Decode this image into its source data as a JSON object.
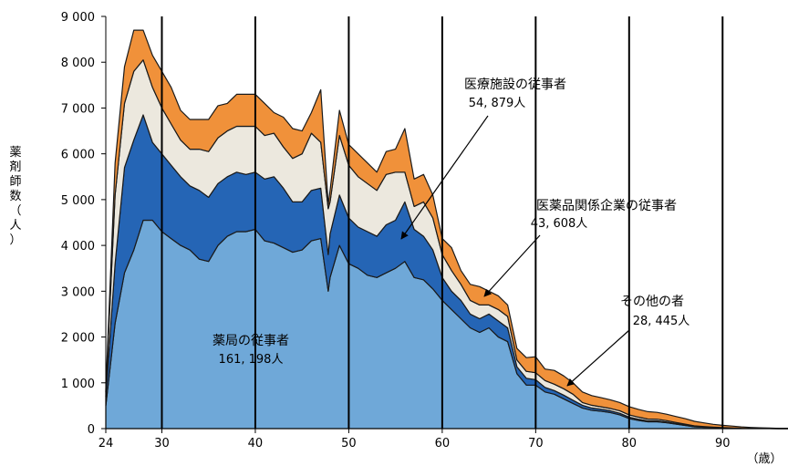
{
  "chart_data": {
    "type": "area",
    "stacked": true,
    "ylabel": "薬剤師数（人）",
    "xlabel": "（歳）",
    "ylim": [
      0,
      9000
    ],
    "xlim": [
      24,
      97
    ],
    "yticks": [
      "0",
      "1 000",
      "2 000",
      "3 000",
      "4 000",
      "5 000",
      "6 000",
      "7 000",
      "8 000",
      "9 000"
    ],
    "ytick_values": [
      0,
      1000,
      2000,
      3000,
      4000,
      5000,
      6000,
      7000,
      8000,
      9000
    ],
    "xticks": [
      "24",
      "30",
      "40",
      "50",
      "60",
      "70",
      "80",
      "90"
    ],
    "xtick_values": [
      24,
      30,
      40,
      50,
      60,
      70,
      80,
      90
    ],
    "x": [
      24,
      25,
      26,
      27,
      28,
      29,
      30,
      31,
      32,
      33,
      34,
      35,
      36,
      37,
      38,
      39,
      40,
      41,
      42,
      43,
      44,
      45,
      46,
      47,
      47.8,
      48,
      49,
      50,
      51,
      52,
      53,
      54,
      55,
      56,
      57,
      58,
      59,
      60,
      61,
      62,
      63,
      64,
      65,
      66,
      67,
      68,
      69,
      70,
      71,
      72,
      73,
      74,
      75,
      76,
      77,
      78,
      79,
      80,
      81,
      82,
      83,
      84,
      85,
      86,
      87,
      88,
      89,
      90,
      91,
      92,
      93,
      94,
      95,
      96,
      97
    ],
    "series": [
      {
        "name": "薬局の従事者",
        "label": "薬局の従事者",
        "value_text": "161, 198人",
        "color": "#6FA8D8",
        "values": [
          500,
          2300,
          3400,
          3900,
          4550,
          4550,
          4300,
          4150,
          4000,
          3900,
          3700,
          3650,
          4000,
          4200,
          4300,
          4300,
          4350,
          4100,
          4050,
          3950,
          3850,
          3900,
          4100,
          4150,
          3000,
          3300,
          4000,
          3600,
          3500,
          3350,
          3300,
          3400,
          3500,
          3650,
          3300,
          3250,
          3050,
          2800,
          2600,
          2400,
          2200,
          2100,
          2200,
          2000,
          1900,
          1200,
          950,
          950,
          800,
          750,
          650,
          550,
          450,
          400,
          380,
          350,
          300,
          220,
          180,
          150,
          150,
          130,
          100,
          70,
          40,
          30,
          25,
          15,
          10,
          5,
          3,
          2,
          1,
          0,
          0
        ]
      },
      {
        "name": "医療施設の従事者",
        "label": "医療施設の従事者",
        "value_text": "54, 879人",
        "color": "#2565B5",
        "values": [
          200,
          1300,
          2300,
          2400,
          2300,
          1700,
          1700,
          1600,
          1500,
          1400,
          1500,
          1400,
          1350,
          1300,
          1300,
          1250,
          1250,
          1350,
          1450,
          1300,
          1100,
          1050,
          1100,
          1100,
          800,
          950,
          1100,
          1000,
          900,
          950,
          900,
          1050,
          1050,
          1300,
          1050,
          950,
          850,
          500,
          400,
          400,
          300,
          300,
          300,
          350,
          300,
          150,
          150,
          120,
          100,
          80,
          80,
          70,
          60,
          50,
          45,
          40,
          35,
          30,
          25,
          20,
          20,
          15,
          10,
          8,
          5,
          5,
          3,
          2,
          2,
          1,
          1,
          0,
          0,
          0,
          0
        ]
      },
      {
        "name": "医薬品関係企業の従事者",
        "label": "医薬品関係企業の従事者",
        "value_text": "43, 608人",
        "color": "#ECE8DE",
        "values": [
          100,
          1500,
          1400,
          1500,
          1200,
          1200,
          1000,
          900,
          800,
          800,
          900,
          1000,
          1000,
          1000,
          1000,
          1050,
          1000,
          950,
          950,
          900,
          950,
          1050,
          1250,
          1000,
          1000,
          700,
          1300,
          1150,
          1100,
          1050,
          1000,
          1100,
          1050,
          650,
          500,
          750,
          700,
          500,
          450,
          350,
          300,
          300,
          200,
          250,
          250,
          150,
          150,
          150,
          150,
          140,
          140,
          130,
          60,
          60,
          50,
          50,
          55,
          50,
          45,
          40,
          35,
          30,
          25,
          20,
          15,
          10,
          5,
          5,
          3,
          2,
          1,
          1,
          0,
          0,
          0
        ]
      },
      {
        "name": "その他の者",
        "label": "その他の者",
        "value_text": "28, 445人",
        "color": "#F0913A",
        "values": [
          50,
          700,
          800,
          900,
          650,
          700,
          800,
          800,
          650,
          650,
          650,
          700,
          700,
          600,
          700,
          700,
          700,
          700,
          450,
          650,
          650,
          500,
          450,
          1150,
          100,
          250,
          550,
          450,
          500,
          450,
          400,
          500,
          500,
          950,
          600,
          600,
          500,
          350,
          500,
          300,
          350,
          400,
          300,
          300,
          250,
          250,
          300,
          350,
          250,
          300,
          280,
          250,
          230,
          210,
          200,
          190,
          180,
          180,
          170,
          160,
          150,
          140,
          130,
          120,
          100,
          80,
          60,
          50,
          40,
          30,
          20,
          15,
          10,
          5,
          5
        ]
      }
    ]
  }
}
